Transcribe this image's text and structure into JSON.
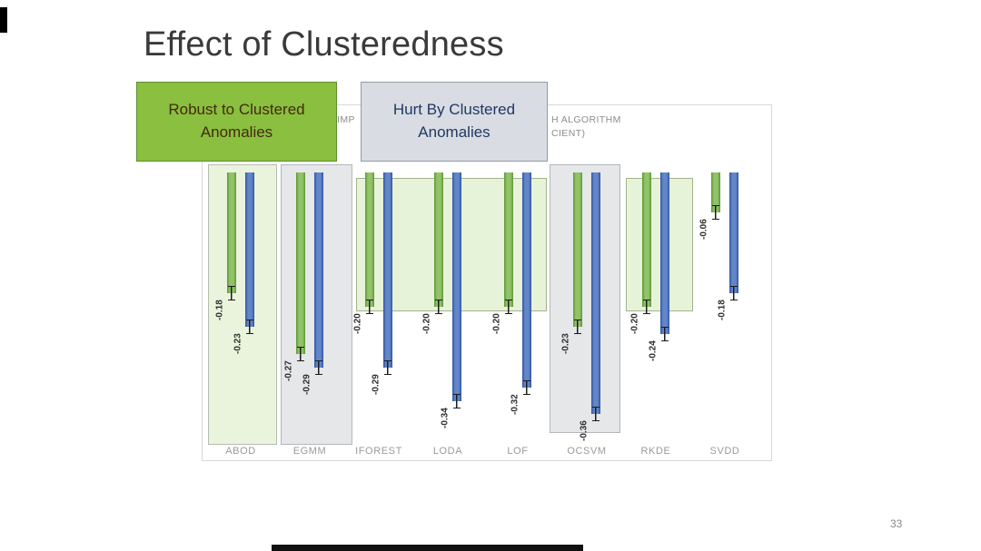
{
  "slide": {
    "title": "Effect of Clusteredness",
    "page_number": "33"
  },
  "callouts": {
    "robust": {
      "line1": "Robust to Clustered",
      "line2": "Anomalies"
    },
    "hurt": {
      "line1": "Hurt By Clustered",
      "line2": "Anomalies"
    }
  },
  "chart_data": {
    "type": "bar",
    "title_visible_fragments": {
      "f1": "IMP",
      "f2": "H ALGORITHM",
      "f3": "CIENT)"
    },
    "categories": [
      "ABOD",
      "EGMM",
      "IFOREST",
      "LODA",
      "LOF",
      "OCSVM",
      "RKDE",
      "SVDD"
    ],
    "series": [
      {
        "name": "green-bars",
        "color": "#70ad47",
        "values": [
          -0.18,
          -0.27,
          -0.2,
          -0.2,
          -0.2,
          -0.23,
          -0.2,
          -0.06
        ]
      },
      {
        "name": "blue-bars",
        "color": "#4472c4",
        "values": [
          -0.23,
          -0.29,
          -0.29,
          -0.34,
          -0.32,
          -0.36,
          -0.24,
          -0.18
        ]
      }
    ],
    "value_labels": [
      [
        "-0.18",
        "-0.23"
      ],
      [
        "-0.27",
        "-0.29"
      ],
      [
        "-0.20",
        "-0.29"
      ],
      [
        "-0.20",
        "-0.34"
      ],
      [
        "-0.20",
        "-0.32"
      ],
      [
        "-0.23",
        "-0.36"
      ],
      [
        "-0.20",
        "-0.24"
      ],
      [
        "-0.06",
        "-0.18"
      ]
    ],
    "error_bars": true,
    "ylim": [
      -0.4,
      0
    ],
    "orientation": "bars-hang-downward-from-zero",
    "highlighted_groups": [
      {
        "algorithms": [
          "ABOD"
        ],
        "style": "green-strip"
      },
      {
        "algorithms": [
          "EGMM"
        ],
        "style": "gray-strip"
      },
      {
        "algorithms": [
          "IFOREST",
          "LODA",
          "LOF"
        ],
        "style": "green-box"
      },
      {
        "algorithms": [
          "OCSVM"
        ],
        "style": "gray-strip"
      },
      {
        "algorithms": [
          "RKDE"
        ],
        "style": "green-box"
      }
    ]
  },
  "colors": {
    "green_bar": "#70ad47",
    "blue_bar": "#4472c4",
    "callout_green_bg": "#8abf3f",
    "callout_gray_bg": "#d9dce2",
    "callout_hurt_text": "#1f3864",
    "axis_label_gray": "#9a9a9a"
  }
}
